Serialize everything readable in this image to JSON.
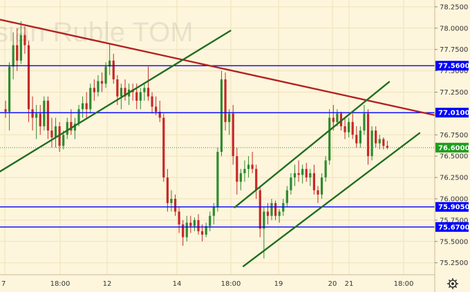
{
  "watermark": "sian Ruble TOM",
  "settings_icon": "gear-icon",
  "colors": {
    "background": "#fdf5dc",
    "grid": "#efe3b8",
    "bull": "#2e8b2e",
    "bear": "#c62828",
    "level": "#0000ff",
    "trend_down": "#b22222",
    "channel": "#1f6e1f",
    "current_price_bg": "#1e9e1e"
  },
  "chart_data": {
    "type": "candlestick",
    "title": "",
    "xlabel": "",
    "ylabel": "",
    "ylim": [
      75.11,
      78.33
    ],
    "grid": true,
    "y_ticks": [
      "75.2500",
      "75.5000",
      "75.7500",
      "76.0000",
      "76.2500",
      "76.5000",
      "76.7500",
      "77.0000",
      "77.2500",
      "77.5000",
      "77.7500",
      "78.0000",
      "78.2500"
    ],
    "x_ticks": [
      "7",
      "18:00",
      "12",
      "14",
      "18:00",
      "19",
      "20",
      "21",
      "18:00"
    ],
    "horizontal_levels": [
      {
        "label": "77.5600",
        "value": 77.56
      },
      {
        "label": "77.0100",
        "value": 77.01
      },
      {
        "label": "75.9050",
        "value": 75.905
      },
      {
        "label": "75.6700",
        "value": 75.67
      }
    ],
    "current_price": {
      "label": "76.6000",
      "value": 76.6
    },
    "trendlines": [
      {
        "role": "resistance",
        "from": [
          0.0,
          78.1
        ],
        "to": [
          100.0,
          76.98
        ]
      },
      {
        "role": "support",
        "from": [
          0.0,
          76.32
        ],
        "to": [
          53.0,
          77.97
        ]
      },
      {
        "role": "channel-upper",
        "from": [
          54.0,
          75.9
        ],
        "to": [
          89.5,
          77.37
        ]
      },
      {
        "role": "channel-lower",
        "from": [
          56.0,
          75.21
        ],
        "to": [
          96.5,
          76.77
        ]
      }
    ],
    "candles": [
      {
        "o": 77.05,
        "h": 77.15,
        "l": 76.95,
        "c": 77.02
      },
      {
        "o": 77.02,
        "h": 77.6,
        "l": 76.8,
        "c": 77.55
      },
      {
        "o": 77.55,
        "h": 77.95,
        "l": 77.4,
        "c": 77.8
      },
      {
        "o": 77.8,
        "h": 78.0,
        "l": 77.5,
        "c": 77.62
      },
      {
        "o": 77.62,
        "h": 78.08,
        "l": 77.58,
        "c": 77.92
      },
      {
        "o": 77.92,
        "h": 78.02,
        "l": 77.7,
        "c": 77.8
      },
      {
        "o": 77.8,
        "h": 77.85,
        "l": 76.9,
        "c": 77.05
      },
      {
        "o": 77.05,
        "h": 77.2,
        "l": 76.8,
        "c": 76.95
      },
      {
        "o": 76.95,
        "h": 77.1,
        "l": 76.7,
        "c": 77.0
      },
      {
        "o": 77.0,
        "h": 77.1,
        "l": 76.75,
        "c": 76.85
      },
      {
        "o": 76.85,
        "h": 77.2,
        "l": 76.8,
        "c": 77.15
      },
      {
        "o": 77.15,
        "h": 77.2,
        "l": 76.7,
        "c": 76.8
      },
      {
        "o": 76.8,
        "h": 76.95,
        "l": 76.6,
        "c": 76.72
      },
      {
        "o": 76.72,
        "h": 76.95,
        "l": 76.6,
        "c": 76.85
      },
      {
        "o": 76.85,
        "h": 76.9,
        "l": 76.55,
        "c": 76.62
      },
      {
        "o": 76.62,
        "h": 76.8,
        "l": 76.58,
        "c": 76.75
      },
      {
        "o": 76.75,
        "h": 76.95,
        "l": 76.7,
        "c": 76.9
      },
      {
        "o": 76.9,
        "h": 77.05,
        "l": 76.75,
        "c": 76.8
      },
      {
        "o": 76.8,
        "h": 76.95,
        "l": 76.7,
        "c": 76.88
      },
      {
        "o": 76.88,
        "h": 77.1,
        "l": 76.85,
        "c": 77.05
      },
      {
        "o": 77.05,
        "h": 77.2,
        "l": 76.95,
        "c": 77.12
      },
      {
        "o": 77.12,
        "h": 77.25,
        "l": 76.95,
        "c": 77.05
      },
      {
        "o": 77.05,
        "h": 77.35,
        "l": 77.0,
        "c": 77.3
      },
      {
        "o": 77.3,
        "h": 77.4,
        "l": 77.15,
        "c": 77.25
      },
      {
        "o": 77.25,
        "h": 77.45,
        "l": 77.2,
        "c": 77.38
      },
      {
        "o": 77.38,
        "h": 77.48,
        "l": 77.25,
        "c": 77.35
      },
      {
        "o": 77.35,
        "h": 77.6,
        "l": 77.3,
        "c": 77.55
      },
      {
        "o": 77.55,
        "h": 77.82,
        "l": 77.45,
        "c": 77.62
      },
      {
        "o": 77.62,
        "h": 77.7,
        "l": 77.35,
        "c": 77.4
      },
      {
        "o": 77.4,
        "h": 77.45,
        "l": 77.1,
        "c": 77.2
      },
      {
        "o": 77.2,
        "h": 77.35,
        "l": 77.05,
        "c": 77.3
      },
      {
        "o": 77.3,
        "h": 77.4,
        "l": 77.15,
        "c": 77.2
      },
      {
        "o": 77.2,
        "h": 77.35,
        "l": 77.1,
        "c": 77.28
      },
      {
        "o": 77.28,
        "h": 77.35,
        "l": 77.15,
        "c": 77.25
      },
      {
        "o": 77.25,
        "h": 77.35,
        "l": 77.05,
        "c": 77.15
      },
      {
        "o": 77.15,
        "h": 77.3,
        "l": 77.05,
        "c": 77.25
      },
      {
        "o": 77.25,
        "h": 77.35,
        "l": 77.15,
        "c": 77.3
      },
      {
        "o": 77.3,
        "h": 77.55,
        "l": 77.15,
        "c": 77.2
      },
      {
        "o": 77.2,
        "h": 77.25,
        "l": 77.0,
        "c": 77.08
      },
      {
        "o": 77.08,
        "h": 77.2,
        "l": 76.98,
        "c": 77.02
      },
      {
        "o": 77.02,
        "h": 77.15,
        "l": 76.9,
        "c": 76.95
      },
      {
        "o": 76.95,
        "h": 77.0,
        "l": 76.2,
        "c": 76.25
      },
      {
        "o": 76.25,
        "h": 76.35,
        "l": 75.85,
        "c": 75.95
      },
      {
        "o": 75.95,
        "h": 76.1,
        "l": 75.85,
        "c": 76.0
      },
      {
        "o": 76.0,
        "h": 76.05,
        "l": 75.8,
        "c": 75.85
      },
      {
        "o": 75.85,
        "h": 75.9,
        "l": 75.6,
        "c": 75.7
      },
      {
        "o": 75.7,
        "h": 75.75,
        "l": 75.45,
        "c": 75.55
      },
      {
        "o": 75.55,
        "h": 75.8,
        "l": 75.5,
        "c": 75.72
      },
      {
        "o": 75.72,
        "h": 75.8,
        "l": 75.6,
        "c": 75.68
      },
      {
        "o": 75.68,
        "h": 75.78,
        "l": 75.62,
        "c": 75.75
      },
      {
        "o": 75.75,
        "h": 75.82,
        "l": 75.58,
        "c": 75.62
      },
      {
        "o": 75.62,
        "h": 75.7,
        "l": 75.5,
        "c": 75.58
      },
      {
        "o": 75.58,
        "h": 75.72,
        "l": 75.55,
        "c": 75.68
      },
      {
        "o": 75.68,
        "h": 75.85,
        "l": 75.62,
        "c": 75.8
      },
      {
        "o": 75.8,
        "h": 75.95,
        "l": 75.7,
        "c": 75.9
      },
      {
        "o": 75.9,
        "h": 76.6,
        "l": 75.85,
        "c": 76.55
      },
      {
        "o": 76.55,
        "h": 77.5,
        "l": 76.5,
        "c": 77.4
      },
      {
        "o": 77.4,
        "h": 77.48,
        "l": 76.8,
        "c": 76.9
      },
      {
        "o": 76.9,
        "h": 77.05,
        "l": 76.75,
        "c": 77.0
      },
      {
        "o": 77.0,
        "h": 77.1,
        "l": 76.4,
        "c": 76.5
      },
      {
        "o": 76.5,
        "h": 76.6,
        "l": 76.05,
        "c": 76.2
      },
      {
        "o": 76.2,
        "h": 76.35,
        "l": 76.1,
        "c": 76.3
      },
      {
        "o": 76.3,
        "h": 76.45,
        "l": 76.2,
        "c": 76.35
      },
      {
        "o": 76.35,
        "h": 76.5,
        "l": 76.25,
        "c": 76.4
      },
      {
        "o": 76.4,
        "h": 76.55,
        "l": 76.3,
        "c": 76.35
      },
      {
        "o": 76.35,
        "h": 76.4,
        "l": 76.0,
        "c": 76.1
      },
      {
        "o": 76.1,
        "h": 76.15,
        "l": 75.55,
        "c": 75.65
      },
      {
        "o": 75.65,
        "h": 75.9,
        "l": 75.3,
        "c": 75.85
      },
      {
        "o": 75.85,
        "h": 75.95,
        "l": 75.7,
        "c": 75.8
      },
      {
        "o": 75.8,
        "h": 76.0,
        "l": 75.75,
        "c": 75.95
      },
      {
        "o": 75.95,
        "h": 75.98,
        "l": 75.75,
        "c": 75.8
      },
      {
        "o": 75.8,
        "h": 75.88,
        "l": 75.72,
        "c": 75.85
      },
      {
        "o": 75.85,
        "h": 76.0,
        "l": 75.8,
        "c": 75.95
      },
      {
        "o": 75.95,
        "h": 76.15,
        "l": 75.9,
        "c": 76.1
      },
      {
        "o": 76.1,
        "h": 76.3,
        "l": 76.05,
        "c": 76.25
      },
      {
        "o": 76.25,
        "h": 76.4,
        "l": 76.15,
        "c": 76.3
      },
      {
        "o": 76.3,
        "h": 76.45,
        "l": 76.2,
        "c": 76.28
      },
      {
        "o": 76.28,
        "h": 76.4,
        "l": 76.18,
        "c": 76.35
      },
      {
        "o": 76.35,
        "h": 76.42,
        "l": 76.2,
        "c": 76.25
      },
      {
        "o": 76.25,
        "h": 76.35,
        "l": 76.15,
        "c": 76.3
      },
      {
        "o": 76.3,
        "h": 76.4,
        "l": 76.05,
        "c": 76.1
      },
      {
        "o": 76.1,
        "h": 76.15,
        "l": 75.95,
        "c": 76.05
      },
      {
        "o": 76.05,
        "h": 76.3,
        "l": 76.0,
        "c": 76.25
      },
      {
        "o": 76.25,
        "h": 76.5,
        "l": 76.2,
        "c": 76.45
      },
      {
        "o": 76.45,
        "h": 77.05,
        "l": 76.4,
        "c": 76.95
      },
      {
        "o": 76.95,
        "h": 77.1,
        "l": 76.8,
        "c": 76.9
      },
      {
        "o": 76.9,
        "h": 77.05,
        "l": 76.85,
        "c": 77.0
      },
      {
        "o": 77.0,
        "h": 77.02,
        "l": 76.8,
        "c": 76.85
      },
      {
        "o": 76.85,
        "h": 76.95,
        "l": 76.7,
        "c": 76.78
      },
      {
        "o": 76.78,
        "h": 76.95,
        "l": 76.72,
        "c": 76.9
      },
      {
        "o": 76.9,
        "h": 77.0,
        "l": 76.7,
        "c": 76.75
      },
      {
        "o": 76.75,
        "h": 76.85,
        "l": 76.6,
        "c": 76.65
      },
      {
        "o": 76.65,
        "h": 76.85,
        "l": 76.6,
        "c": 76.8
      },
      {
        "o": 76.8,
        "h": 77.1,
        "l": 76.75,
        "c": 77.0
      },
      {
        "o": 77.0,
        "h": 77.05,
        "l": 76.4,
        "c": 76.5
      },
      {
        "o": 76.5,
        "h": 76.85,
        "l": 76.45,
        "c": 76.8
      },
      {
        "o": 76.8,
        "h": 76.85,
        "l": 76.6,
        "c": 76.65
      },
      {
        "o": 76.65,
        "h": 76.75,
        "l": 76.58,
        "c": 76.7
      },
      {
        "o": 76.7,
        "h": 76.72,
        "l": 76.58,
        "c": 76.62
      },
      {
        "o": 76.62,
        "h": 76.68,
        "l": 76.58,
        "c": 76.6
      }
    ]
  }
}
